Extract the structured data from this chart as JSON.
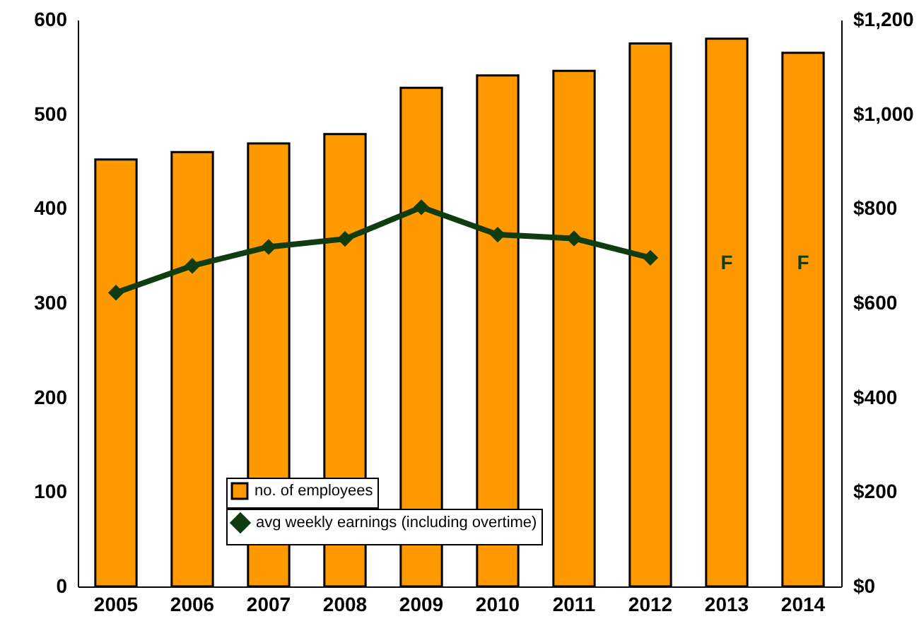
{
  "chart_data": {
    "type": "bar",
    "categories": [
      "2005",
      "2006",
      "2007",
      "2008",
      "2009",
      "2010",
      "2011",
      "2012",
      "2013",
      "2014"
    ],
    "series": [
      {
        "name": "no. of employees",
        "color": "#ff9900",
        "values": [
          452,
          460,
          469,
          479,
          528,
          541,
          546,
          575,
          580,
          565
        ]
      },
      {
        "name": "avg weekly earnings (including overtime)",
        "type": "line",
        "axis": "y2",
        "color": "#0f3d0f",
        "values": [
          622,
          679,
          719,
          736,
          803,
          745,
          737,
          696,
          null,
          null
        ]
      }
    ],
    "ylim": [
      0,
      600
    ],
    "yticks": [
      0,
      100,
      200,
      300,
      400,
      500,
      600
    ],
    "y2lim": [
      0,
      1200
    ],
    "y2ticks": [
      {
        "value": 0,
        "label": "$0"
      },
      {
        "value": 200,
        "label": "$200"
      },
      {
        "value": 400,
        "label": "$400"
      },
      {
        "value": 600,
        "label": "$600"
      },
      {
        "value": 800,
        "label": "$800"
      },
      {
        "value": 1000,
        "label": "$1,000"
      },
      {
        "value": 1200,
        "label": "$1,200"
      }
    ],
    "annotations": [
      "F",
      "F"
    ],
    "grid": false,
    "legend": "bottom",
    "marker": "diamond",
    "line_style": "solid"
  }
}
